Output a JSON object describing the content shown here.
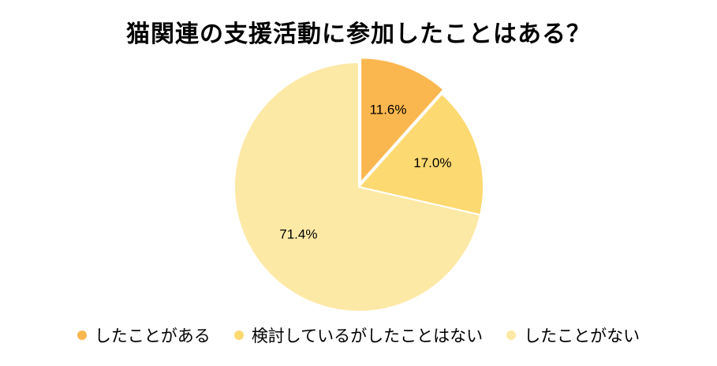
{
  "chart_data": {
    "type": "pie",
    "title": "猫関連の支援活動に参加したことはある？",
    "categories": [
      "したことがある",
      "検討しているがしたことはない",
      "したことがない"
    ],
    "values": [
      11.6,
      17.0,
      71.4
    ],
    "labels": [
      "11.6%",
      "17.0%",
      "71.4%"
    ],
    "colors": [
      "#FBB74F",
      "#FDD971",
      "#FDE9A6"
    ],
    "legend_position": "bottom",
    "exploded_slice": 0
  }
}
